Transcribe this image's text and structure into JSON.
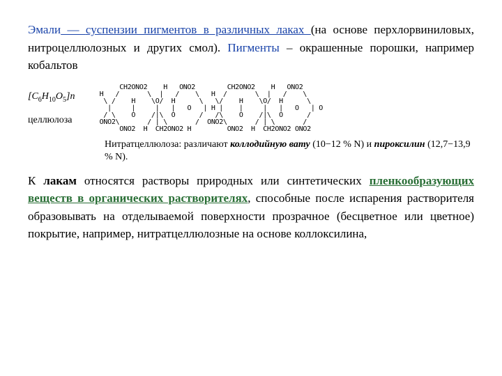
{
  "para1": {
    "enamel": "Эмали",
    "dash": " — ",
    "susp": "суспензии пигментов в различных лаках ",
    "rest1": "(на основе перхлорвиниловых,   нитроцеллюлозных и других смол). ",
    "pigments": "Пигменты",
    "rest2": " – окрашенные порошки, например кобальтов"
  },
  "formula": {
    "molPrefix": "[",
    "molC": "C",
    "molCsub": "6",
    "molH": "H",
    "molHsub": "10",
    "molO": "O",
    "molOsub": "5",
    "molSuffix": "]n",
    "cellulose": "целлюлоза"
  },
  "diagram": "        CH2ONO2    H   ONO2        CH2ONO2    H   ONO2\n   H   /       \\  |   /    \\   H  /       \\  |   /    \\\n    \\ /    H    \\O/  H      \\   \\/    H    \\O/  H      \\\n     |     |     |   |   O   | H |    |     |   |   O   | O\n    / \\    O    /|\\  O      /   /\\    O    /|\\  O      /\n   ONO2\\       / | \\       /  ONO2\\       / | \\       /\n        ONO2  H  CH2ONO2 H         ONO2  H  CH2ONO2 ONO2",
  "caption": {
    "prefix": "Нитратцеллюлоза: различают ",
    "kollod": "коллодийную вату",
    "mid": " (10−12 % N) и ",
    "pirox": "пироксилин",
    "suffix": "  (12,7−13,9 % N)."
  },
  "para2": {
    "p1": "К ",
    "lakam": "лакам",
    "p2": " относятся растворы природных или синтетических ",
    "green": "пленкообразующих веществ в органических растворителях",
    "p3": ", способные после испарения растворителя образовывать на отделываемой поверхности прозрачное (бесцветное или цветное) покрытие, например, нитратцеллюлозные на основе коллоксилина,"
  }
}
